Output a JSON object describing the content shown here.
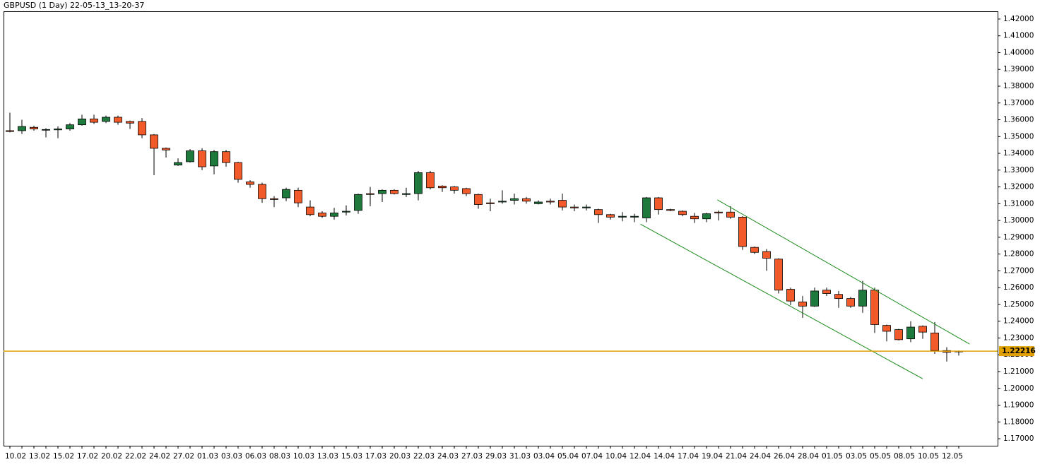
{
  "chart_data": {
    "type": "candlestick",
    "title": "GBPUSD (1 Day) 22-05-13_13-20-37",
    "categories": [
      "10.02",
      null,
      "13.02",
      null,
      "15.02",
      null,
      "17.02",
      null,
      "20.02",
      null,
      "22.02",
      null,
      "24.02",
      null,
      "27.02",
      null,
      "01.03",
      null,
      "03.03",
      null,
      "06.03",
      null,
      "08.03",
      null,
      "10.03",
      null,
      "13.03",
      null,
      "15.03",
      null,
      "17.03",
      null,
      "20.03",
      null,
      "22.03",
      null,
      "24.03",
      null,
      "27.03",
      null,
      "29.03",
      null,
      "31.03",
      null,
      "03.04",
      null,
      "05.04",
      null,
      "07.04",
      null,
      "10.04",
      null,
      "12.04",
      null,
      "14.04",
      null,
      "17.04",
      null,
      "19.04",
      null,
      "21.04",
      null,
      "24.04",
      null,
      "26.04",
      null,
      "28.04",
      null,
      "01.05",
      null,
      "03.05",
      null,
      "05.05",
      null,
      "08.05",
      null,
      "10.05",
      null,
      "12.05",
      null
    ],
    "open": [
      1.3535,
      1.3535,
      1.3555,
      1.354,
      1.354,
      1.3545,
      1.357,
      1.3605,
      1.359,
      1.3615,
      1.359,
      1.359,
      1.351,
      1.343,
      1.333,
      1.335,
      1.3415,
      1.3325,
      1.341,
      1.3345,
      1.323,
      1.3215,
      1.313,
      1.3135,
      1.318,
      1.308,
      1.3045,
      1.3025,
      1.305,
      1.306,
      1.316,
      1.316,
      1.318,
      1.3155,
      1.316,
      1.3285,
      1.3205,
      1.32,
      1.319,
      1.3155,
      1.3105,
      1.311,
      1.312,
      1.313,
      1.31,
      1.3115,
      1.312,
      1.308,
      1.3075,
      1.3065,
      1.3035,
      1.302,
      1.302,
      1.3015,
      1.3135,
      1.3065,
      1.3055,
      1.3025,
      1.301,
      1.305,
      1.305,
      1.302,
      1.284,
      1.2815,
      1.277,
      1.259,
      1.2515,
      1.249,
      1.2585,
      1.256,
      1.2535,
      1.249,
      1.2585,
      1.2375,
      1.235,
      1.2295,
      1.237,
      1.233,
      1.2225,
      1.222
    ],
    "high": [
      1.3642,
      1.36,
      1.3565,
      1.355,
      1.356,
      1.358,
      1.363,
      1.363,
      1.3625,
      1.3625,
      1.3595,
      1.361,
      1.3515,
      1.3435,
      1.337,
      1.3425,
      1.343,
      1.342,
      1.342,
      1.335,
      1.324,
      1.3225,
      1.3145,
      1.3195,
      1.3195,
      1.312,
      1.3055,
      1.3075,
      1.309,
      1.316,
      1.32,
      1.3185,
      1.3185,
      1.3195,
      1.3295,
      1.3295,
      1.321,
      1.3205,
      1.3195,
      1.316,
      1.313,
      1.318,
      1.316,
      1.314,
      1.312,
      1.313,
      1.316,
      1.3095,
      1.3095,
      1.307,
      1.304,
      1.305,
      1.304,
      1.314,
      1.314,
      1.307,
      1.306,
      1.3045,
      1.3045,
      1.306,
      1.3085,
      1.3025,
      1.2845,
      1.283,
      1.2775,
      1.26,
      1.255,
      1.26,
      1.26,
      1.258,
      1.2545,
      1.264,
      1.26,
      1.238,
      1.2355,
      1.24,
      1.2375,
      1.2395,
      1.2245,
      1.2225
    ],
    "low": [
      1.3525,
      1.3515,
      1.3535,
      1.3495,
      1.349,
      1.3535,
      1.3565,
      1.3575,
      1.358,
      1.357,
      1.3545,
      1.349,
      1.327,
      1.3375,
      1.3325,
      1.3345,
      1.33,
      1.3275,
      1.332,
      1.3225,
      1.3195,
      1.3105,
      1.308,
      1.3115,
      1.308,
      1.3025,
      1.3015,
      1.3005,
      1.303,
      1.304,
      1.3085,
      1.311,
      1.3155,
      1.314,
      1.312,
      1.3185,
      1.317,
      1.316,
      1.3145,
      1.307,
      1.3055,
      1.31,
      1.3095,
      1.31,
      1.3095,
      1.3095,
      1.306,
      1.3055,
      1.306,
      1.2985,
      1.3005,
      1.2995,
      1.299,
      1.299,
      1.3035,
      1.3055,
      1.3025,
      1.2985,
      1.299,
      1.3,
      1.301,
      1.2825,
      1.28,
      1.27,
      1.2565,
      1.2495,
      1.242,
      1.2485,
      1.255,
      1.248,
      1.248,
      1.245,
      1.233,
      1.228,
      1.2285,
      1.2275,
      1.2295,
      1.2205,
      1.216,
      1.2195
    ],
    "close": [
      1.353,
      1.356,
      1.3545,
      1.3542,
      1.3545,
      1.357,
      1.3605,
      1.3585,
      1.3615,
      1.3585,
      1.358,
      1.351,
      1.343,
      1.342,
      1.3345,
      1.3415,
      1.332,
      1.341,
      1.3345,
      1.3245,
      1.3215,
      1.313,
      1.3125,
      1.3185,
      1.3105,
      1.3035,
      1.3025,
      1.3045,
      1.3055,
      1.3155,
      1.3155,
      1.318,
      1.316,
      1.316,
      1.3285,
      1.3195,
      1.3195,
      1.318,
      1.316,
      1.3095,
      1.31,
      1.3115,
      1.313,
      1.3115,
      1.311,
      1.311,
      1.308,
      1.3075,
      1.308,
      1.3035,
      1.302,
      1.3025,
      1.3025,
      1.3135,
      1.3065,
      1.306,
      1.3035,
      1.301,
      1.304,
      1.3045,
      1.302,
      1.2845,
      1.281,
      1.2775,
      1.2585,
      1.252,
      1.249,
      1.258,
      1.2565,
      1.2535,
      1.249,
      1.2585,
      1.238,
      1.234,
      1.229,
      1.2365,
      1.2335,
      1.2225,
      1.2215,
      1.22216
    ],
    "up_color": "#1e7a3c",
    "down_color": "#f25a2a",
    "current_price": 1.22216,
    "current_price_color": "#e0a000",
    "trendlines": [
      {
        "x": [
          52.5,
          76.0
        ],
        "y": [
          1.2978,
          1.2057
        ],
        "color": "#1a8a1a"
      },
      {
        "x": [
          58.9,
          79.9
        ],
        "y": [
          1.3123,
          1.2264
        ],
        "color": "#1a8a1a"
      }
    ],
    "ylim": [
      1.1654,
      1.4246
    ],
    "yticks": [
      {
        "value": 1.17,
        "label": "1.17000"
      },
      {
        "value": 1.18,
        "label": "1.18000"
      },
      {
        "value": 1.19,
        "label": "1.19000"
      },
      {
        "value": 1.2,
        "label": "1.20000"
      },
      {
        "value": 1.21,
        "label": "1.21000"
      },
      {
        "value": 1.22,
        "label": "1.22000"
      },
      {
        "value": 1.23,
        "label": "1.23000"
      },
      {
        "value": 1.24,
        "label": "1.24000"
      },
      {
        "value": 1.25,
        "label": "1.25000"
      },
      {
        "value": 1.26,
        "label": "1.26000"
      },
      {
        "value": 1.27,
        "label": "1.27000"
      },
      {
        "value": 1.28,
        "label": "1.28000"
      },
      {
        "value": 1.29,
        "label": "1.29000"
      },
      {
        "value": 1.3,
        "label": "1.30000"
      },
      {
        "value": 1.31,
        "label": "1.31000"
      },
      {
        "value": 1.32,
        "label": "1.32000"
      },
      {
        "value": 1.33,
        "label": "1.33000"
      },
      {
        "value": 1.34,
        "label": "1.34000"
      },
      {
        "value": 1.35,
        "label": "1.35000"
      },
      {
        "value": 1.36,
        "label": "1.36000"
      },
      {
        "value": 1.37,
        "label": "1.37000"
      },
      {
        "value": 1.38,
        "label": "1.38000"
      },
      {
        "value": 1.39,
        "label": "1.39000"
      },
      {
        "value": 1.4,
        "label": "1.40000"
      },
      {
        "value": 1.41,
        "label": "1.41000"
      },
      {
        "value": 1.42,
        "label": "1.42000"
      }
    ]
  }
}
